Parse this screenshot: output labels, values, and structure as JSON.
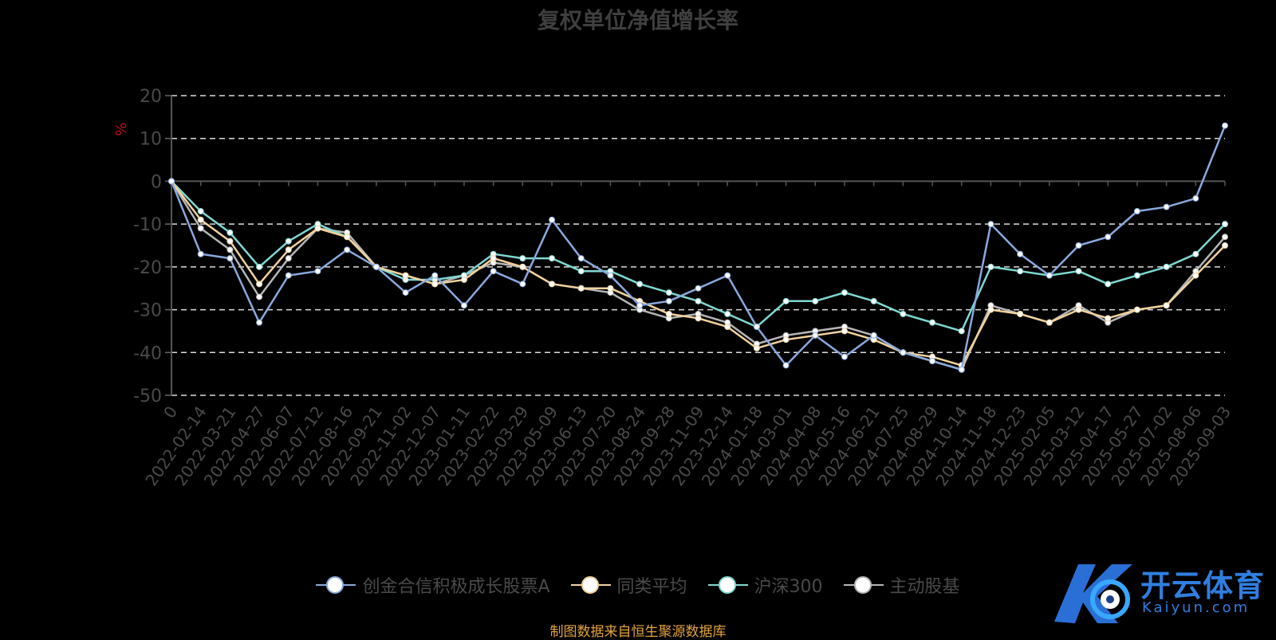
{
  "title": "复权单位净值增长率",
  "source": "制图数据来自恒生聚源数据库",
  "brand": {
    "cn": "开云体育",
    "en": "Kaiyun.com",
    "color": "#2f7fe0"
  },
  "chart_data": {
    "type": "line",
    "ylabel": "%",
    "ylim": [
      -50,
      20
    ],
    "yticks": [
      20,
      10,
      0,
      -10,
      -20,
      -30,
      -40,
      -50
    ],
    "grid": true,
    "legend": "bottom",
    "x": [
      "0",
      "2022-02-14",
      "2022-03-21",
      "2022-04-27",
      "2022-06-07",
      "2022-07-12",
      "2022-08-16",
      "2022-09-21",
      "2022-11-02",
      "2022-12-07",
      "2023-01-11",
      "2023-02-22",
      "2023-03-29",
      "2023-05-09",
      "2023-06-13",
      "2023-07-20",
      "2023-08-24",
      "2023-09-28",
      "2023-11-09",
      "2023-12-14",
      "2024-01-18",
      "2024-03-01",
      "2024-04-08",
      "2024-05-16",
      "2024-06-21",
      "2024-07-25",
      "2024-08-29",
      "2024-10-14",
      "2024-11-18",
      "2024-12-23",
      "2025-02-05",
      "2025-03-12",
      "2025-04-17",
      "2025-05-27",
      "2025-07-02",
      "2025-08-06",
      "2025-09-03"
    ],
    "series": [
      {
        "name": "创金合信积极成长股票A",
        "color": "#8aa9de",
        "values": [
          0,
          -17,
          -18,
          -33,
          -22,
          -21,
          -16,
          -20,
          -26,
          -22,
          -29,
          -21,
          -24,
          -9,
          -18,
          -22,
          -29,
          -28,
          -25,
          -22,
          -34,
          -43,
          -36,
          -41,
          -36,
          -40,
          -42,
          -44,
          -10,
          -17,
          -22,
          -15,
          -13,
          -7,
          -6,
          -4,
          13
        ]
      },
      {
        "name": "同类平均",
        "color": "#f2d29c",
        "values": [
          0,
          -9,
          -14,
          -24,
          -16,
          -11,
          -13,
          -20,
          -22,
          -24,
          -23,
          -18,
          -20,
          -24,
          -25,
          -25,
          -28,
          -31,
          -32,
          -34,
          -39,
          -37,
          -36,
          -35,
          -37,
          -40,
          -41,
          -43,
          -30,
          -31,
          -33,
          -30,
          -32,
          -30,
          -29,
          -22,
          -15
        ]
      },
      {
        "name": "沪深300",
        "color": "#7ed9d2",
        "values": [
          0,
          -7,
          -12,
          -20,
          -14,
          -10,
          -13,
          -20,
          -23,
          -23,
          -22,
          -17,
          -18,
          -18,
          -21,
          -21,
          -24,
          -26,
          -28,
          -31,
          -34,
          -28,
          -28,
          -26,
          -28,
          -31,
          -33,
          -35,
          -20,
          -21,
          -22,
          -21,
          -24,
          -22,
          -20,
          -17,
          -10
        ]
      },
      {
        "name": "主动股基",
        "color": "#b6b6b6",
        "values": [
          0,
          -11,
          -16,
          -27,
          -18,
          -11,
          -12,
          -20,
          -22,
          -24,
          -22,
          -19,
          -20,
          -24,
          -25,
          -26,
          -30,
          -32,
          -31,
          -33,
          -38,
          -36,
          -35,
          -34,
          -36,
          -40,
          -42,
          -44,
          -29,
          -31,
          -33,
          -29,
          -33,
          -30,
          -29,
          -21,
          -13
        ]
      }
    ]
  }
}
